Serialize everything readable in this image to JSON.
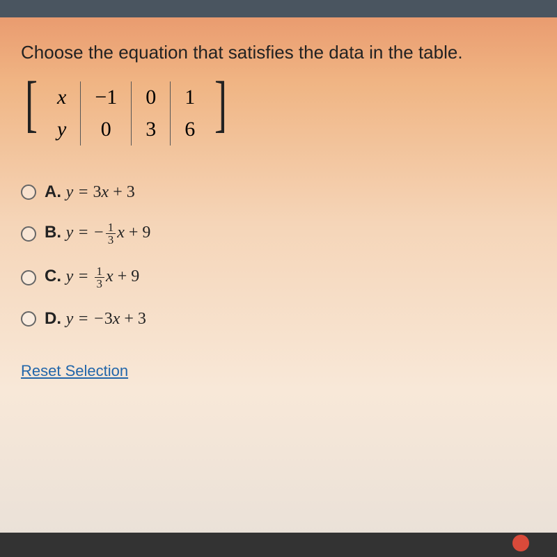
{
  "question": "Choose the equation that satisfies the data in the table.",
  "table": {
    "row1": [
      "x",
      "−1",
      "0",
      "1"
    ],
    "row2": [
      "y",
      "0",
      "3",
      "6"
    ]
  },
  "options": {
    "a": {
      "letter": "A.",
      "prefix": "y = ",
      "coef": "3",
      "var": "x",
      "tail": " + 3"
    },
    "b": {
      "letter": "B.",
      "prefix": "y = −",
      "coef": "",
      "var": "x",
      "tail": " + 9",
      "frac_n": "1",
      "frac_d": "3"
    },
    "c": {
      "letter": "C.",
      "prefix": "y = ",
      "coef": "",
      "var": "x",
      "tail": " + 9",
      "frac_n": "1",
      "frac_d": "3"
    },
    "d": {
      "letter": "D.",
      "prefix": "y = −",
      "coef": "3",
      "var": "x",
      "tail": " + 3"
    }
  },
  "reset": "Reset Selection"
}
